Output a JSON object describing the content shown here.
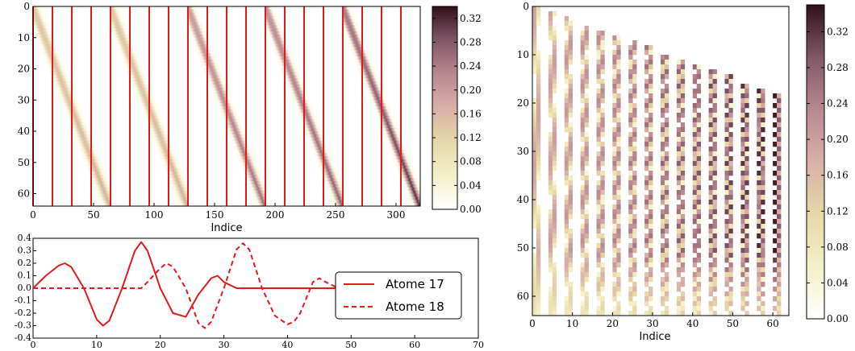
{
  "chart_data": [
    {
      "type": "heatmap",
      "panel": "top-left",
      "xlabel": "Indice",
      "ylabel": "",
      "xlim": [
        0,
        320
      ],
      "ylim": [
        64,
        0
      ],
      "x_ticks": [
        0,
        50,
        100,
        150,
        200,
        250,
        300
      ],
      "y_ticks": [
        0,
        10,
        20,
        30,
        40,
        50,
        60
      ],
      "colormap": [
        "#ffffff",
        "#f4f0c8",
        "#e6d8a8",
        "#d8b0a8",
        "#b88890",
        "#805868",
        "#301018"
      ],
      "blocks": [
        {
          "x_start": 0,
          "x_end": 64,
          "band_x_at_top": 0,
          "band_x_at_bottom": 64,
          "peak": 0.18
        },
        {
          "x_start": 64,
          "x_end": 128,
          "band_x_at_top": 64,
          "band_x_at_bottom": 128,
          "peak": 0.18
        },
        {
          "x_start": 128,
          "x_end": 192,
          "band_x_at_top": 128,
          "band_x_at_bottom": 192,
          "peak": 0.26
        },
        {
          "x_start": 192,
          "x_end": 256,
          "band_x_at_top": 192,
          "band_x_at_bottom": 256,
          "peak": 0.28
        },
        {
          "x_start": 256,
          "x_end": 320,
          "band_x_at_top": 256,
          "band_x_at_bottom": 320,
          "peak": 0.32
        }
      ],
      "red_vertical_lines": [
        0,
        16,
        32,
        48,
        64,
        80,
        96,
        112,
        128,
        144,
        160,
        176,
        192,
        208,
        224,
        240,
        256,
        272,
        288,
        304
      ],
      "colorbar": {
        "min": 0.0,
        "max": 0.34,
        "ticks": [
          "0.00",
          "0.04",
          "0.08",
          "0.12",
          "0.16",
          "0.20",
          "0.24",
          "0.28",
          "0.32"
        ]
      }
    },
    {
      "type": "line",
      "panel": "bottom-left",
      "xlabel": "",
      "ylabel": "",
      "xlim": [
        0,
        70
      ],
      "ylim": [
        -0.4,
        0.4
      ],
      "x_ticks": [
        0,
        10,
        20,
        30,
        40,
        50,
        60,
        70
      ],
      "y_ticks": [
        "-0.4",
        "-0.3",
        "-0.2",
        "-0.1",
        "0.0",
        "0.1",
        "0.2",
        "0.3",
        "0.4"
      ],
      "series": [
        {
          "name": "Atome 17",
          "style": "solid",
          "color": "#e31a1c",
          "x": [
            0,
            2,
            4,
            5,
            6,
            8,
            10,
            11,
            12,
            14,
            16,
            17,
            18,
            20,
            22,
            24,
            26,
            28,
            29,
            30,
            32,
            35,
            40,
            45,
            48
          ],
          "y": [
            0,
            0.1,
            0.18,
            0.2,
            0.17,
            0.0,
            -0.25,
            -0.3,
            -0.26,
            0.0,
            0.3,
            0.37,
            0.3,
            0.0,
            -0.2,
            -0.23,
            -0.05,
            0.08,
            0.1,
            0.05,
            0,
            0,
            0,
            0,
            0
          ]
        },
        {
          "name": "Atome 18",
          "style": "dashed",
          "color": "#e31a1c",
          "x": [
            0,
            10,
            14,
            16,
            17,
            18,
            20,
            21,
            22,
            24,
            26,
            27,
            28,
            30,
            32,
            33,
            34,
            36,
            38,
            40,
            41,
            42,
            44,
            45,
            46,
            48,
            50
          ],
          "y": [
            0,
            0,
            0,
            0,
            0,
            0.05,
            0.16,
            0.2,
            0.17,
            0,
            -0.28,
            -0.32,
            -0.27,
            0,
            0.31,
            0.36,
            0.31,
            0,
            -0.22,
            -0.29,
            -0.27,
            -0.2,
            0.05,
            0.08,
            0.05,
            0,
            0
          ]
        }
      ],
      "legend": {
        "placement": "right",
        "entries": [
          "Atome 17",
          "Atome 18"
        ]
      }
    },
    {
      "type": "heatmap",
      "panel": "right",
      "xlabel": "Indice",
      "ylabel": "",
      "xlim": [
        0,
        64
      ],
      "ylim": [
        64,
        0
      ],
      "x_ticks": [
        0,
        10,
        20,
        30,
        40,
        50,
        60
      ],
      "y_ticks": [
        0,
        10,
        20,
        30,
        40,
        50,
        60
      ],
      "column_groups": 16,
      "colorbar": {
        "min": 0.0,
        "max": 0.35,
        "ticks": [
          "0.00",
          "0.04",
          "0.08",
          "0.12",
          "0.16",
          "0.20",
          "0.24",
          "0.28",
          "0.32"
        ]
      }
    }
  ]
}
